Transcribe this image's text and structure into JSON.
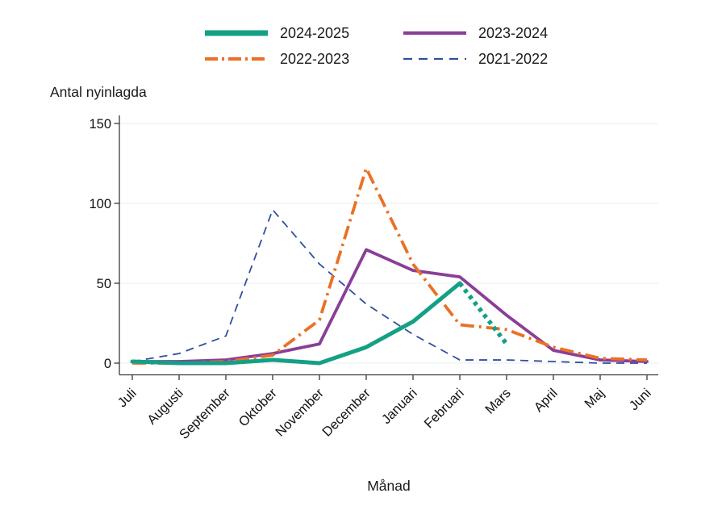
{
  "page": {
    "background": "#ffffff"
  },
  "chart_data": {
    "type": "line",
    "title": "",
    "ylabel": "Antal nyinlagda",
    "xlabel": "Månad",
    "x_categories": [
      "Juli",
      "Augusti",
      "September",
      "Oktober",
      "November",
      "December",
      "Januari",
      "Februari",
      "Mars",
      "April",
      "Maj",
      "Juni"
    ],
    "y_ticks": [
      0,
      50,
      100,
      150
    ],
    "ylim": [
      0,
      155
    ],
    "grid": "horizontal",
    "legend_position": "top",
    "series": [
      {
        "name": "2021-2022",
        "color": "#2f4f9f",
        "line_style": "dashed",
        "thickness": "thin",
        "values": [
          1,
          6,
          17,
          96,
          62,
          37,
          18,
          2,
          2,
          1,
          0,
          0
        ]
      },
      {
        "name": "2023-2024",
        "color": "#8a3e97",
        "line_style": "solid",
        "thickness": "medium",
        "values": [
          1,
          1,
          2,
          6,
          12,
          71,
          58,
          54,
          30,
          8,
          2,
          1
        ]
      },
      {
        "name": "2022-2023",
        "color": "#ea7125",
        "line_style": "dashdot",
        "thickness": "medium",
        "values": [
          0,
          0,
          1,
          5,
          27,
          122,
          62,
          24,
          21,
          10,
          3,
          2
        ]
      },
      {
        "name": "2024-2025",
        "color": "#14a085",
        "line_style": "solid",
        "thickness": "thick",
        "values": [
          1,
          0,
          0,
          2,
          0,
          10,
          26,
          50,
          null,
          null,
          null,
          null
        ],
        "dotted_values": [
          null,
          null,
          null,
          null,
          null,
          null,
          null,
          50,
          12,
          null,
          null,
          null
        ]
      }
    ]
  },
  "legend": {
    "items": [
      {
        "label": "2024-2025",
        "series": "2024-2025"
      },
      {
        "label": "2022-2023",
        "series": "2022-2023"
      },
      {
        "label": "2023-2024",
        "series": "2023-2024"
      },
      {
        "label": "2021-2022",
        "series": "2021-2022"
      }
    ]
  }
}
